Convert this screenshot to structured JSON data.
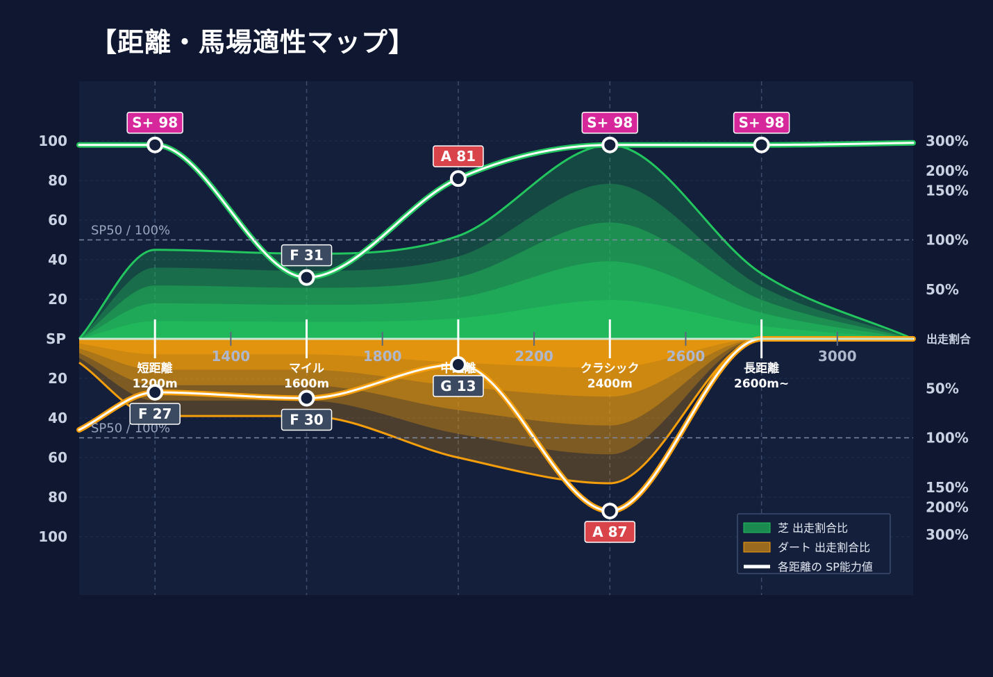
{
  "title": "【距離・馬場適性マップ】",
  "chart_data": {
    "type": "area",
    "x_ticks": [
      1400,
      1800,
      2200,
      2600,
      3000
    ],
    "left_axis": {
      "labels_top": [
        "100",
        "80",
        "60",
        "40",
        "20"
      ],
      "zero_label": "SP",
      "labels_bottom": [
        "20",
        "40",
        "60",
        "80",
        "100"
      ]
    },
    "right_axis": {
      "labels_top": [
        "300%",
        "200%",
        "150%",
        "100%",
        "50%"
      ],
      "zero_label": "出走割合",
      "labels_bottom": [
        "50%",
        "100%",
        "150%",
        "200%",
        "300%"
      ]
    },
    "reference_label": "SP50 / 100%",
    "categories": [
      {
        "line1": "短距離",
        "line2": "1200m",
        "x": 1200
      },
      {
        "line1": "マイル",
        "line2": "1600m",
        "x": 1600
      },
      {
        "line1": "中距離",
        "line2": "",
        "x": 2000
      },
      {
        "line1": "クラシック",
        "line2": "2400m",
        "x": 2400
      },
      {
        "line1": "長距離",
        "line2": "2600m~",
        "x": 2800
      }
    ],
    "turf_sp": [
      {
        "x": 1200,
        "sp": 98,
        "badge": "S+ 98",
        "color": "#d6279b"
      },
      {
        "x": 1600,
        "sp": 31,
        "badge": "F 31",
        "color": "#3b4a60"
      },
      {
        "x": 2000,
        "sp": 81,
        "badge": "A 81",
        "color": "#d9434a"
      },
      {
        "x": 2400,
        "sp": 98,
        "badge": "S+ 98",
        "color": "#d6279b"
      },
      {
        "x": 2800,
        "sp": 98,
        "badge": "S+ 98",
        "color": "#d6279b"
      }
    ],
    "dirt_sp": [
      {
        "x": 1200,
        "sp": 27,
        "badge": "F 27",
        "color": "#3b4a60"
      },
      {
        "x": 1600,
        "sp": 30,
        "badge": "F 30",
        "color": "#3b4a60"
      },
      {
        "x": 2000,
        "sp": 13,
        "badge": "G 13",
        "color": "#3b4a60"
      },
      {
        "x": 2400,
        "sp": 87,
        "badge": "A 87",
        "color": "#d9434a"
      }
    ],
    "turf_ratio_ceiling": [
      {
        "x": 1000,
        "v": 0
      },
      {
        "x": 1200,
        "v": 45
      },
      {
        "x": 1600,
        "v": 43
      },
      {
        "x": 2000,
        "v": 52
      },
      {
        "x": 2400,
        "v": 98
      },
      {
        "x": 2800,
        "v": 33
      },
      {
        "x": 3200,
        "v": 0
      }
    ],
    "dirt_ratio_ceiling": [
      {
        "x": 1000,
        "v": 12
      },
      {
        "x": 1200,
        "v": 39
      },
      {
        "x": 1600,
        "v": 39
      },
      {
        "x": 2000,
        "v": 60
      },
      {
        "x": 2400,
        "v": 73
      },
      {
        "x": 2800,
        "v": 0
      },
      {
        "x": 3200,
        "v": 0
      }
    ],
    "sp_left_start": {
      "turf": 98,
      "dirt": 46
    },
    "legend": [
      {
        "label": "芝 出走割合比",
        "color": "#1a8a4e"
      },
      {
        "label": "ダート 出走割合比",
        "color": "#9a6a1f"
      },
      {
        "label": "各距離の SP能力値",
        "color": "#ffffff"
      }
    ],
    "colors": {
      "turf": "#22c55e",
      "dirt": "#f59e0b",
      "background": "#0f1830",
      "plot": "#131f3b"
    }
  }
}
